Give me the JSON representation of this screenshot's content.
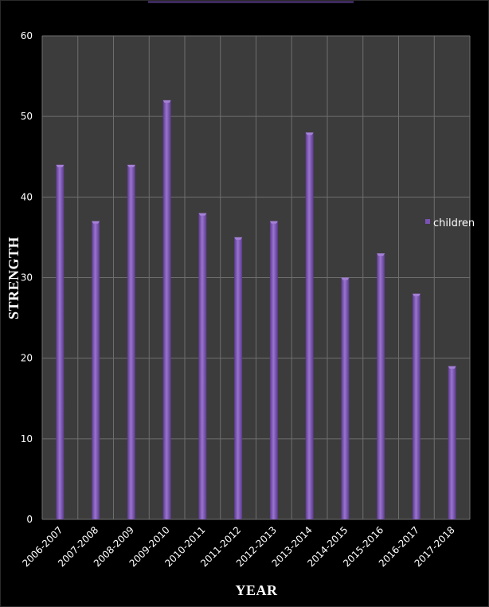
{
  "chart_data": {
    "type": "bar",
    "categories": [
      "2006-2007",
      "2007-2008",
      "2008-2009",
      "2009-2010",
      "2010-2011",
      "2011-2012",
      "2012-2013",
      "2013-2014",
      "2014-2015",
      "2015-2016",
      "2016-2017",
      "2017-2018"
    ],
    "series": [
      {
        "name": "children",
        "values": [
          44,
          37,
          44,
          52,
          38,
          35,
          37,
          48,
          30,
          33,
          28,
          19
        ]
      }
    ],
    "xlabel": "YEAR",
    "ylabel": "STRENGTH",
    "ylim": [
      0,
      60
    ],
    "yticks": [
      0,
      10,
      20,
      30,
      40,
      50,
      60
    ],
    "grid": true,
    "legend_position": "right",
    "colors": {
      "background": "#000000",
      "plot_area": "#3c3c3c",
      "grid": "#6e6e6e",
      "bar": "#7b52b4",
      "bar_highlight": "#a581d6",
      "text": "#ffffff"
    }
  }
}
